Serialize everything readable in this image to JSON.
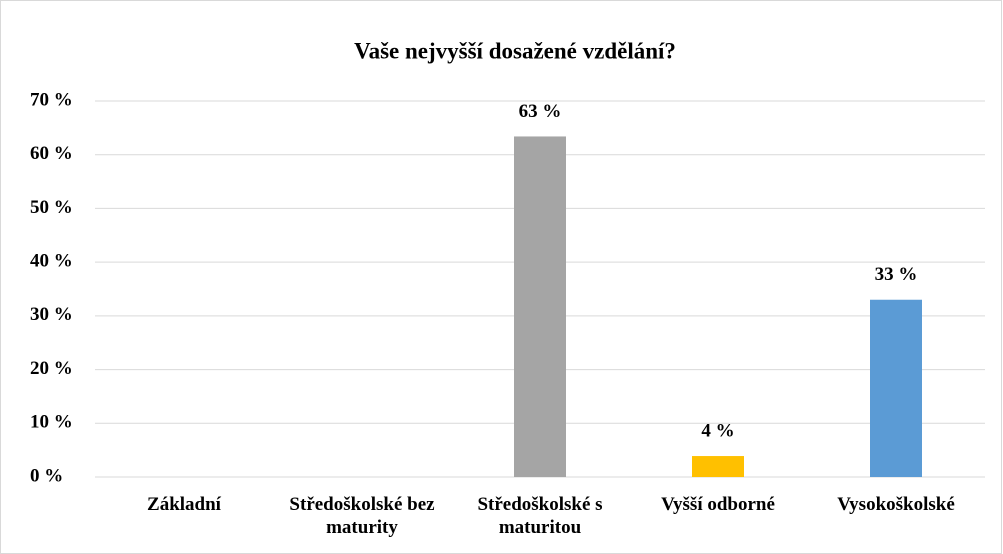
{
  "chart_data": {
    "type": "bar",
    "title": "Vaše nejvyšší dosažené vzdělání?",
    "categories": [
      "Základní",
      "Středoškolské bez maturity",
      "Středoškolské s maturitou",
      "Vyšší odborné",
      "Vysokoškolské"
    ],
    "values": [
      0,
      0,
      63.4,
      3.9,
      33
    ],
    "value_labels": [
      null,
      null,
      "63 %",
      "4 %",
      "33 %"
    ],
    "colors": [
      "#4472c4",
      "#ed7d31",
      "#a5a5a5",
      "#ffc000",
      "#5b9bd5"
    ],
    "ylim": [
      0,
      70
    ],
    "yticks": [
      {
        "value": 0,
        "label": "0 %"
      },
      {
        "value": 10,
        "label": "10 %"
      },
      {
        "value": 20,
        "label": "20 %"
      },
      {
        "value": 30,
        "label": "30 %"
      },
      {
        "value": 40,
        "label": "40 %"
      },
      {
        "value": 50,
        "label": "50 %"
      },
      {
        "value": 60,
        "label": "60 %"
      },
      {
        "value": 70,
        "label": "70 %"
      }
    ],
    "grid": true
  }
}
